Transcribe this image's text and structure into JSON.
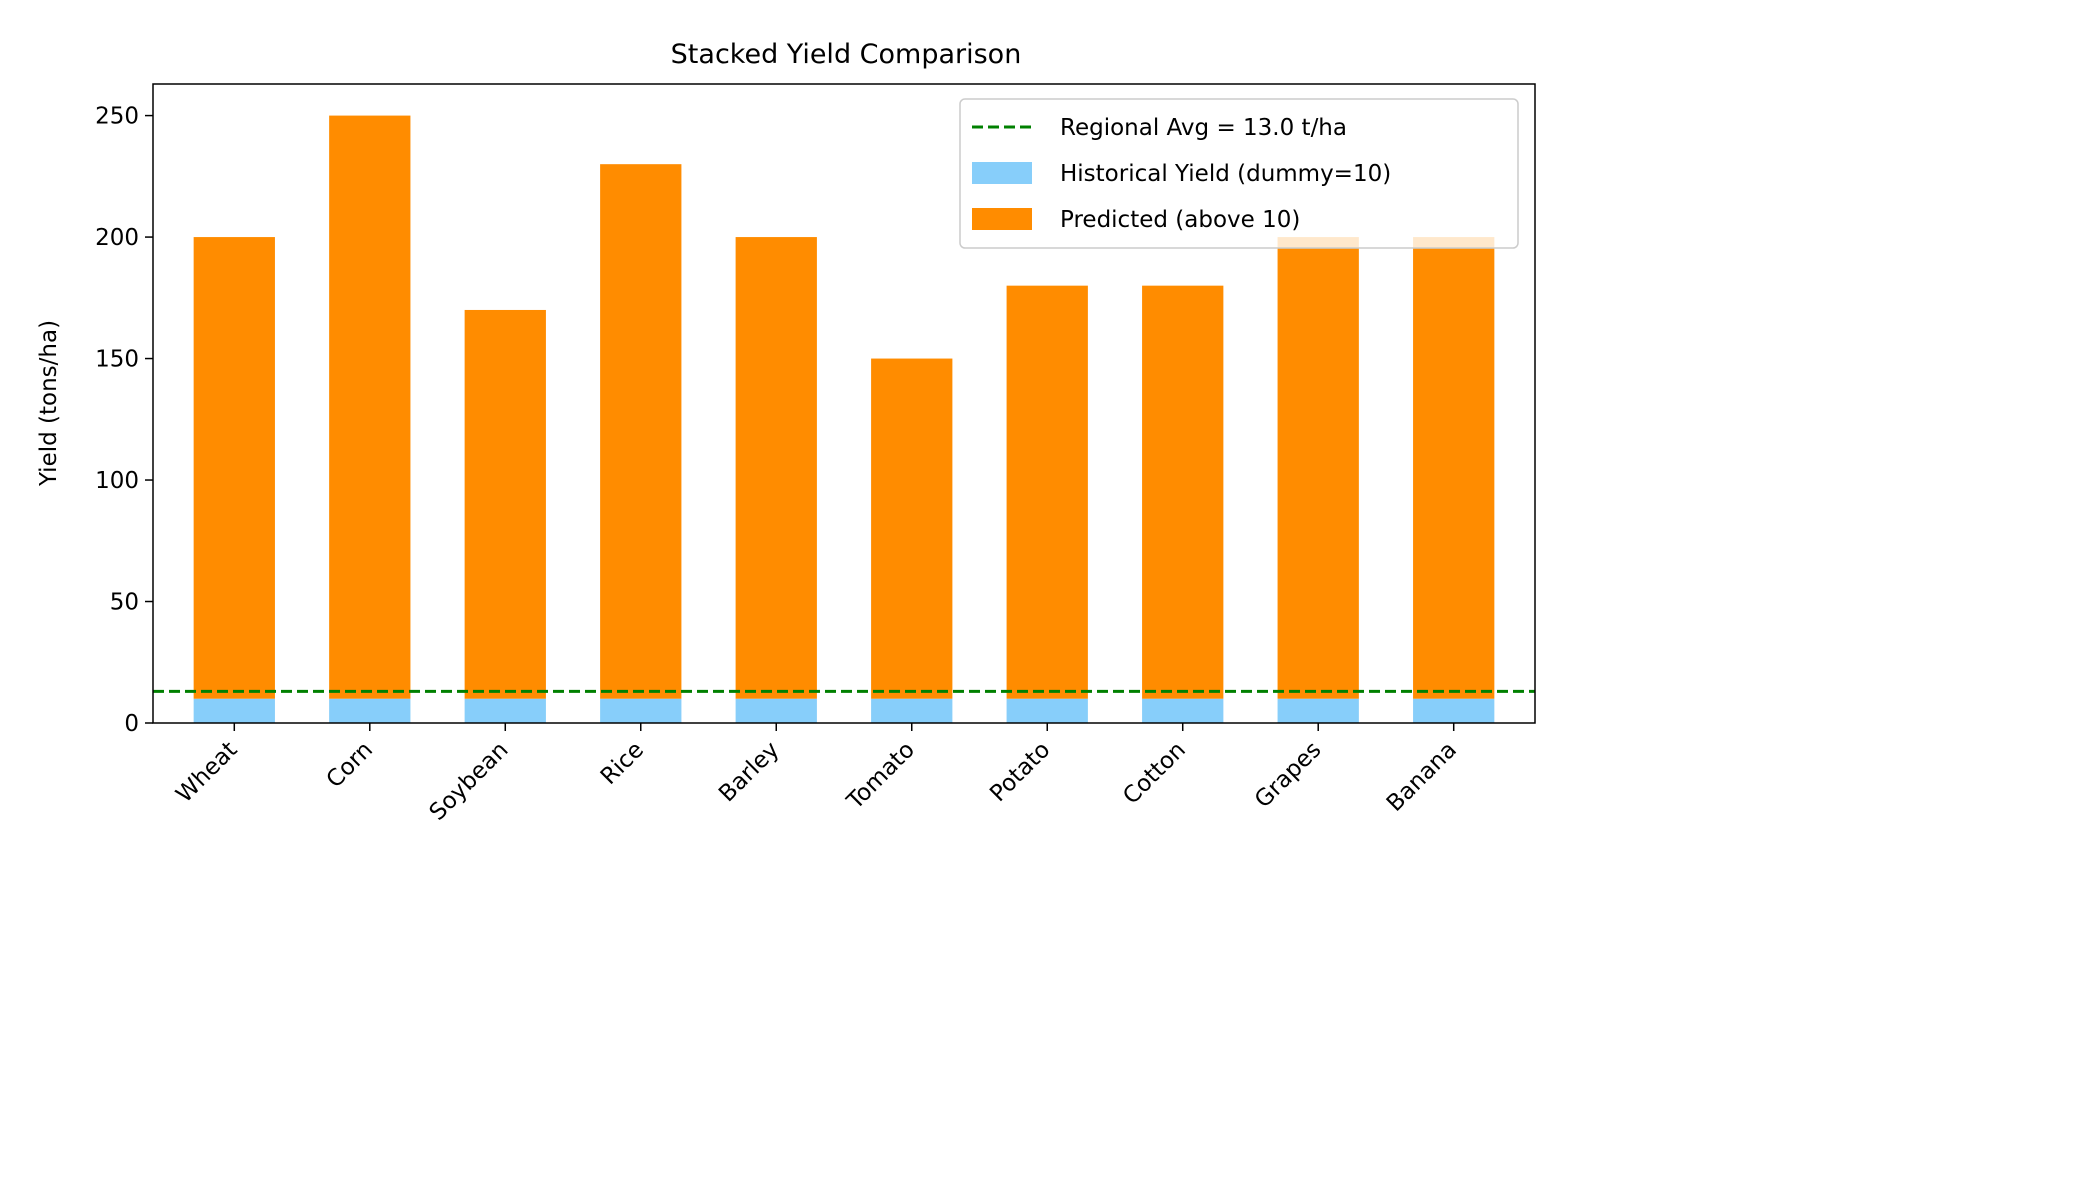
{
  "chart_data": {
    "type": "bar",
    "stacked": true,
    "title": "Stacked Yield Comparison",
    "xlabel": "",
    "ylabel": "Yield (tons/ha)",
    "ylim": [
      0,
      263
    ],
    "yticks": [
      0,
      50,
      100,
      150,
      200,
      250
    ],
    "categories": [
      "Wheat",
      "Corn",
      "Soybean",
      "Rice",
      "Barley",
      "Tomato",
      "Potato",
      "Cotton",
      "Grapes",
      "Banana"
    ],
    "series": [
      {
        "name": "Historical Yield (dummy=10)",
        "color": "#87cefa",
        "values": [
          10,
          10,
          10,
          10,
          10,
          10,
          10,
          10,
          10,
          10
        ]
      },
      {
        "name": "Predicted (above 10)",
        "color": "#ff8c00",
        "values": [
          190,
          240,
          160,
          220,
          190,
          140,
          170,
          170,
          190,
          190
        ]
      }
    ],
    "reference_line": {
      "label": "Regional Avg = 13.0 t/ha",
      "value": 13.0,
      "color": "#008000",
      "style": "dashed"
    },
    "legend_position": "top-right",
    "grid": false
  }
}
